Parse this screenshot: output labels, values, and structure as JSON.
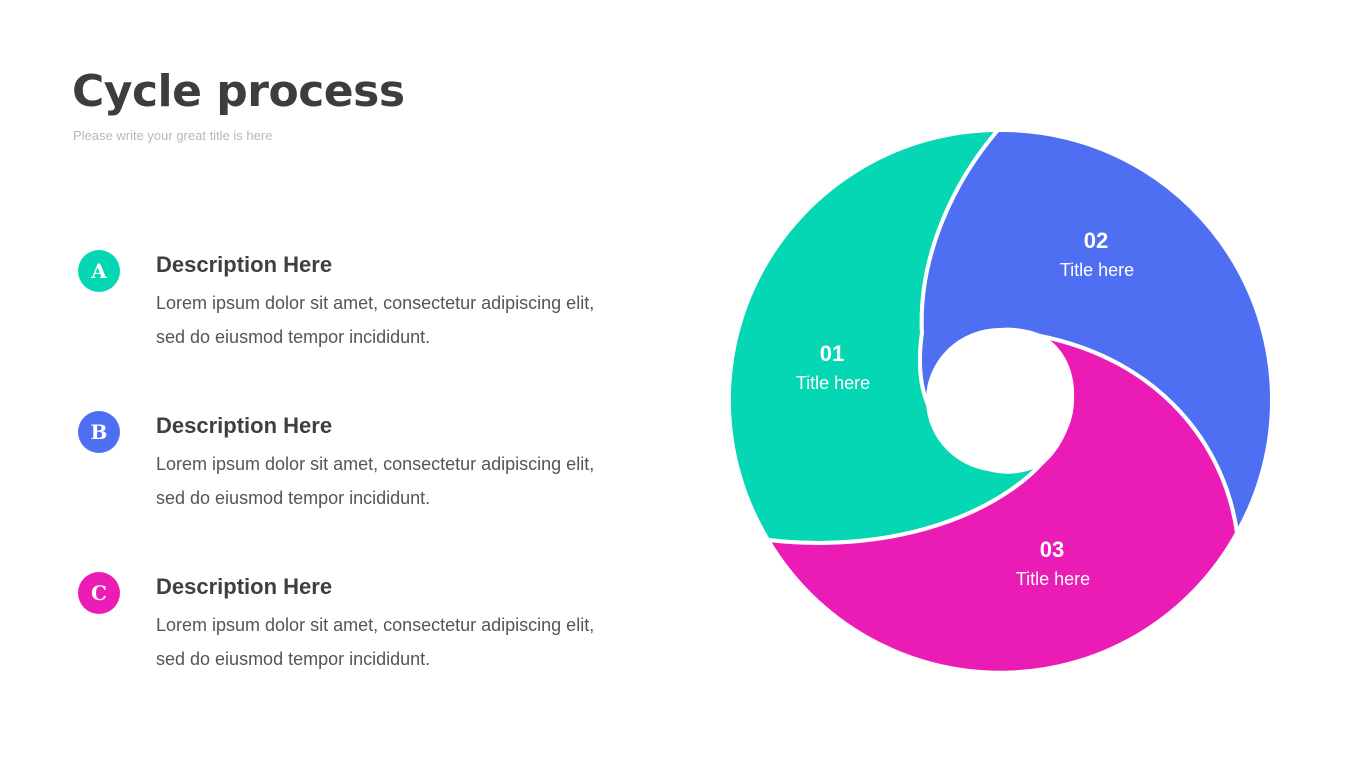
{
  "header": {
    "title": "Cycle process",
    "subtitle": "Please write your great title is here"
  },
  "items": [
    {
      "badge": "A",
      "color": "#05d6b3",
      "heading": "Description Here",
      "text": "Lorem ipsum dolor sit amet, consectetur adipiscing elit, sed do eiusmod tempor incididunt."
    },
    {
      "badge": "B",
      "color": "#4f6ff2",
      "heading": "Description Here",
      "text": "Lorem ipsum dolor sit amet, consectetur adipiscing elit, sed do eiusmod tempor incididunt."
    },
    {
      "badge": "C",
      "color": "#ea1cb5",
      "heading": "Description Here",
      "text": "Lorem ipsum dolor sit amet, consectetur adipiscing elit, sed do eiusmod tempor incididunt."
    }
  ],
  "cycle": {
    "segments": [
      {
        "number": "01",
        "label": "Title here",
        "color": "#05d6b3"
      },
      {
        "number": "02",
        "label": "Title here",
        "color": "#4f6ff2"
      },
      {
        "number": "03",
        "label": "Title here",
        "color": "#ea1cb5"
      }
    ]
  }
}
